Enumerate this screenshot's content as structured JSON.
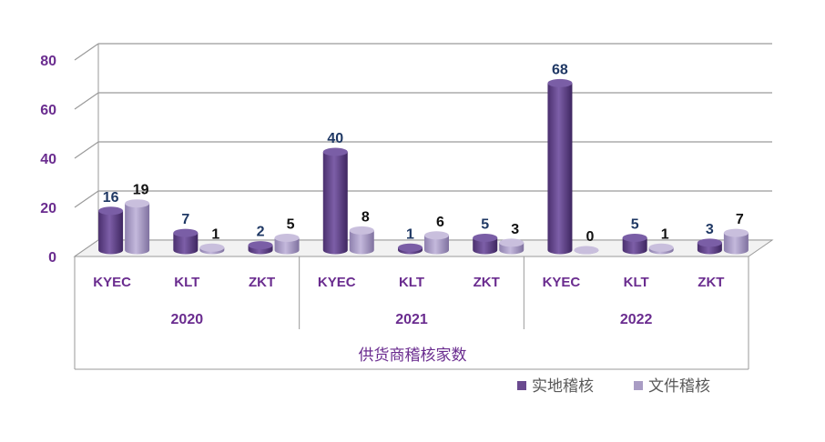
{
  "chart_data": {
    "type": "bar",
    "xlabel": "供货商稽核家数",
    "ylim": [
      0,
      80
    ],
    "yticks": [
      0,
      20,
      40,
      60,
      80
    ],
    "groups": [
      {
        "label": "2020",
        "categories": [
          "KYEC",
          "KLT",
          "ZKT"
        ]
      },
      {
        "label": "2021",
        "categories": [
          "KYEC",
          "KLT",
          "ZKT"
        ]
      },
      {
        "label": "2022",
        "categories": [
          "KYEC",
          "KLT",
          "ZKT"
        ]
      }
    ],
    "series": [
      {
        "name": "实地稽核",
        "color": "#6a4a8f",
        "values": [
          16,
          7,
          2,
          40,
          1,
          5,
          68,
          5,
          3
        ]
      },
      {
        "name": "文件稽核",
        "color": "#a99cc4",
        "values": [
          19,
          1,
          5,
          8,
          6,
          3,
          0,
          1,
          7
        ]
      }
    ],
    "legend_position": "bottom-right",
    "grid": true
  }
}
